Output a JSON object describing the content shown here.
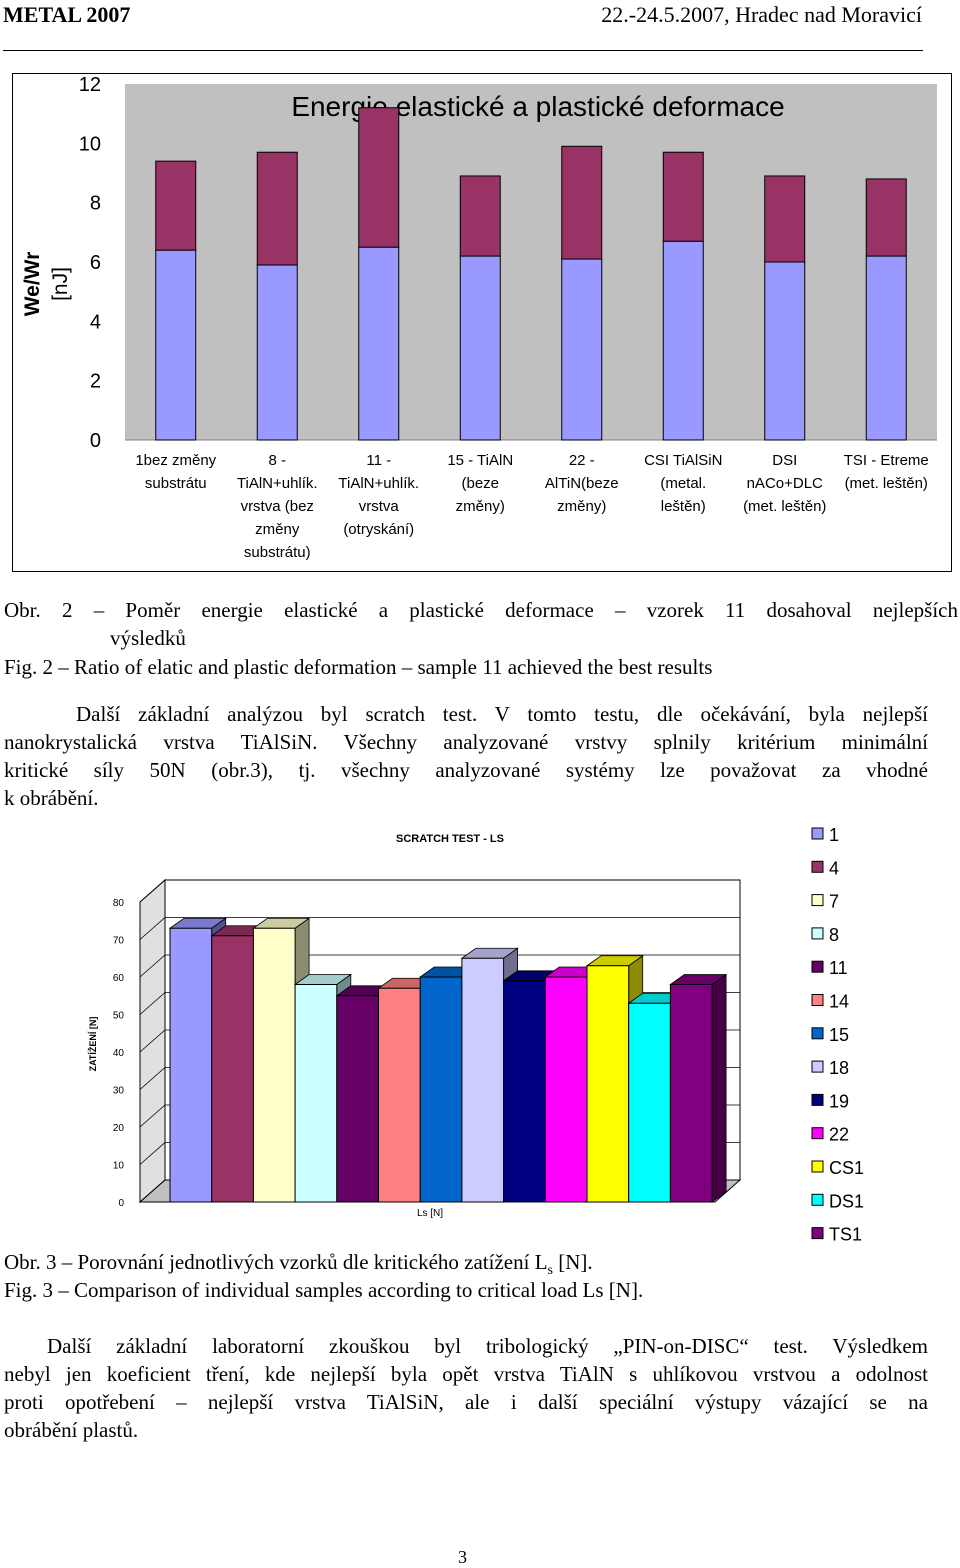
{
  "header": {
    "left": "METAL 2007",
    "right": "22.-24.5.2007, Hradec nad Moravicí"
  },
  "figure1": {
    "chart_data": {
      "type": "bar",
      "stacked": true,
      "title": "Energie elastické a plastické deformace",
      "ylabel_line1": "We/Wr",
      "ylabel_line2": "[nJ]",
      "ylim": [
        0,
        12
      ],
      "yticks": [
        "0",
        "2",
        "4",
        "6",
        "8",
        "10",
        "12"
      ],
      "categories": [
        [
          "1bez změny",
          "substrátu"
        ],
        [
          "8 -",
          "TiAlN+uhlík.",
          "vrstva (bez",
          "změny",
          "substrátu)"
        ],
        [
          "11 -",
          "TiAlN+uhlík.",
          "vrstva",
          "(otryskání)"
        ],
        [
          "15 - TiAlN",
          "(beze",
          "změny)"
        ],
        [
          "22 -",
          "AlTiN(beze",
          "změny)"
        ],
        [
          "CSI TiAlSiN",
          "(metal.",
          "leštěn)"
        ],
        [
          "DSI",
          "nACo+DLC",
          "(met. leštěn)"
        ],
        [
          "TSI - Etreme",
          "(met. leštěn)"
        ]
      ],
      "series": [
        {
          "values": [
            6.4,
            5.9,
            6.5,
            6.2,
            6.1,
            6.7,
            6.0,
            6.2
          ],
          "color": "#9999ff"
        },
        {
          "values": [
            3.0,
            3.8,
            4.7,
            2.7,
            3.8,
            3.0,
            2.9,
            2.6
          ],
          "color": "#993366"
        }
      ],
      "background": "#c0c0c0",
      "grid": false
    }
  },
  "caption1_cz": "Obr. 2 – Poměr energie elastické a plastické deformace – vzorek 11 dosahoval nejlepších",
  "caption1_cz_cont": "výsledků",
  "caption1_en": "Fig. 2 – Ratio of elatic and plastic deformation – sample 11 achieved the best results",
  "para1": [
    "Další základní analýzou byl scratch test. V tomto testu, dle očekávání, byla nejlepší",
    "nanokrystalická vrstva TiAlSiN. Všechny analyzované vrstvy splnily kritérium minimální",
    "kritické síly 50N (obr.3), tj. všechny analyzované systémy lze považovat za vhodné",
    "k obrábění."
  ],
  "figure2": {
    "chart_data": {
      "type": "bar",
      "three_d": true,
      "title": "SCRATCH TEST - LS",
      "xlabel": "Ls [N]",
      "ylabel": "ZATÍŽENÍ [N]",
      "ylim": [
        0,
        80
      ],
      "yticks": [
        "0",
        "10",
        "20",
        "30",
        "40",
        "50",
        "60",
        "70",
        "80"
      ],
      "legend_position": "right",
      "series": [
        {
          "name": "1",
          "value": 73,
          "color": "#9999ff"
        },
        {
          "name": "4",
          "value": 71,
          "color": "#993366"
        },
        {
          "name": "7",
          "value": 73,
          "color": "#ffffcc"
        },
        {
          "name": "8",
          "value": 58,
          "color": "#ccffff"
        },
        {
          "name": "11",
          "value": 55,
          "color": "#660066"
        },
        {
          "name": "14",
          "value": 57,
          "color": "#ff8080"
        },
        {
          "name": "15",
          "value": 60,
          "color": "#0066cc"
        },
        {
          "name": "18",
          "value": 65,
          "color": "#ccccff"
        },
        {
          "name": "19",
          "value": 59,
          "color": "#000080"
        },
        {
          "name": "22",
          "value": 60,
          "color": "#ff00ff"
        },
        {
          "name": "CS1",
          "value": 63,
          "color": "#ffff00"
        },
        {
          "name": "DS1",
          "value": 53,
          "color": "#00ffff"
        },
        {
          "name": "TS1",
          "value": 58,
          "color": "#800080"
        }
      ]
    }
  },
  "caption2_cz": [
    "Obr. 3 – Porovnání jednotlivých vzorků dle kritického zatížení L",
    "s",
    " [N]."
  ],
  "caption2_en": "Fig. 3 – Comparison of individual samples according to critical load Ls [N].",
  "para2": [
    "Další základní laboratorní zkouškou byl tribologický „PIN-on-DISC“ test. Výsledkem",
    "nebyl jen koeficient tření, kde nejlepší byla opět vrstva TiAlN s uhlíkovou vrstvou a odolnost",
    "proti opotřebení – nejlepší vrstva TiAlSiN, ale i další speciální výstupy vázající se na",
    "obrábění plastů."
  ],
  "page_number": "3"
}
